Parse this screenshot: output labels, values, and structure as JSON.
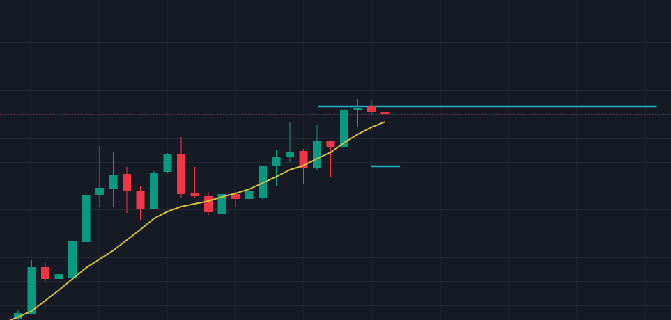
{
  "chart_data": {
    "type": "candlestick",
    "title": "",
    "xlabel": "",
    "ylabel": "",
    "grid": true,
    "ylim": [
      0,
      460
    ],
    "colors": {
      "background": "#161a25",
      "grid": "#232734",
      "up": "#089981",
      "down": "#f23645",
      "moving_average": "#d7c23c",
      "horizontal_level": "#1cb4cc",
      "price_line": "#f23645"
    },
    "candles": [
      {
        "x": 0,
        "open": 2,
        "high": 14,
        "low": 0,
        "close": 10
      },
      {
        "x": 1,
        "open": 8,
        "high": 86,
        "low": 8,
        "close": 76
      },
      {
        "x": 2,
        "open": 76,
        "high": 82,
        "low": 56,
        "close": 59
      },
      {
        "x": 3,
        "open": 59,
        "high": 106,
        "low": 56,
        "close": 66
      },
      {
        "x": 4,
        "open": 60,
        "high": 114,
        "low": 60,
        "close": 113
      },
      {
        "x": 5,
        "open": 112,
        "high": 180,
        "low": 111,
        "close": 180
      },
      {
        "x": 6,
        "open": 180,
        "high": 250,
        "low": 163,
        "close": 190
      },
      {
        "x": 7,
        "open": 189,
        "high": 241,
        "low": 163,
        "close": 209
      },
      {
        "x": 8,
        "open": 210,
        "high": 220,
        "low": 154,
        "close": 185
      },
      {
        "x": 9,
        "open": 186,
        "high": 192,
        "low": 144,
        "close": 159
      },
      {
        "x": 10,
        "open": 159,
        "high": 214,
        "low": 159,
        "close": 212
      },
      {
        "x": 11,
        "open": 213,
        "high": 240,
        "low": 211,
        "close": 238
      },
      {
        "x": 12,
        "open": 238,
        "high": 263,
        "low": 176,
        "close": 181
      },
      {
        "x": 13,
        "open": 182,
        "high": 220,
        "low": 176,
        "close": 178
      },
      {
        "x": 14,
        "open": 178,
        "high": 184,
        "low": 151,
        "close": 155
      },
      {
        "x": 15,
        "open": 153,
        "high": 183,
        "low": 151,
        "close": 181
      },
      {
        "x": 16,
        "open": 181,
        "high": 184,
        "low": 163,
        "close": 174
      },
      {
        "x": 17,
        "open": 174,
        "high": 187,
        "low": 155,
        "close": 186
      },
      {
        "x": 18,
        "open": 176,
        "high": 222,
        "low": 173,
        "close": 221
      },
      {
        "x": 19,
        "open": 221,
        "high": 244,
        "low": 192,
        "close": 235
      },
      {
        "x": 20,
        "open": 235,
        "high": 285,
        "low": 227,
        "close": 241
      },
      {
        "x": 21,
        "open": 243,
        "high": 246,
        "low": 196,
        "close": 218
      },
      {
        "x": 22,
        "open": 218,
        "high": 280,
        "low": 215,
        "close": 258
      },
      {
        "x": 23,
        "open": 257,
        "high": 258,
        "low": 205,
        "close": 248
      },
      {
        "x": 24,
        "open": 249,
        "high": 304,
        "low": 249,
        "close": 302
      },
      {
        "x": 25,
        "open": 302,
        "high": 318,
        "low": 278,
        "close": 305
      },
      {
        "x": 26,
        "open": 308,
        "high": 316,
        "low": 294,
        "close": 299
      },
      {
        "x": 27,
        "open": 299,
        "high": 316,
        "low": 278,
        "close": 296
      }
    ],
    "moving_average": [
      {
        "x": -1,
        "y": -4
      },
      {
        "x": 1,
        "y": 13
      },
      {
        "x": 3,
        "y": 43
      },
      {
        "x": 5,
        "y": 75
      },
      {
        "x": 7,
        "y": 100
      },
      {
        "x": 8,
        "y": 115
      },
      {
        "x": 9,
        "y": 130
      },
      {
        "x": 10,
        "y": 146
      },
      {
        "x": 11,
        "y": 156
      },
      {
        "x": 12,
        "y": 163
      },
      {
        "x": 13,
        "y": 167
      },
      {
        "x": 14,
        "y": 171
      },
      {
        "x": 15,
        "y": 177
      },
      {
        "x": 16,
        "y": 182
      },
      {
        "x": 17,
        "y": 188
      },
      {
        "x": 18,
        "y": 197
      },
      {
        "x": 19,
        "y": 206
      },
      {
        "x": 20,
        "y": 216
      },
      {
        "x": 21,
        "y": 222
      },
      {
        "x": 22,
        "y": 232
      },
      {
        "x": 23,
        "y": 241
      },
      {
        "x": 24,
        "y": 255
      },
      {
        "x": 25,
        "y": 267
      },
      {
        "x": 26,
        "y": 277
      },
      {
        "x": 27,
        "y": 285
      }
    ],
    "horizontal_levels": [
      {
        "x_start": 22.1,
        "x_end": 47.0,
        "y": 307
      },
      {
        "x_start": 26.0,
        "x_end": 28.1,
        "y": 221
      }
    ],
    "price_line": {
      "y": 295
    }
  }
}
